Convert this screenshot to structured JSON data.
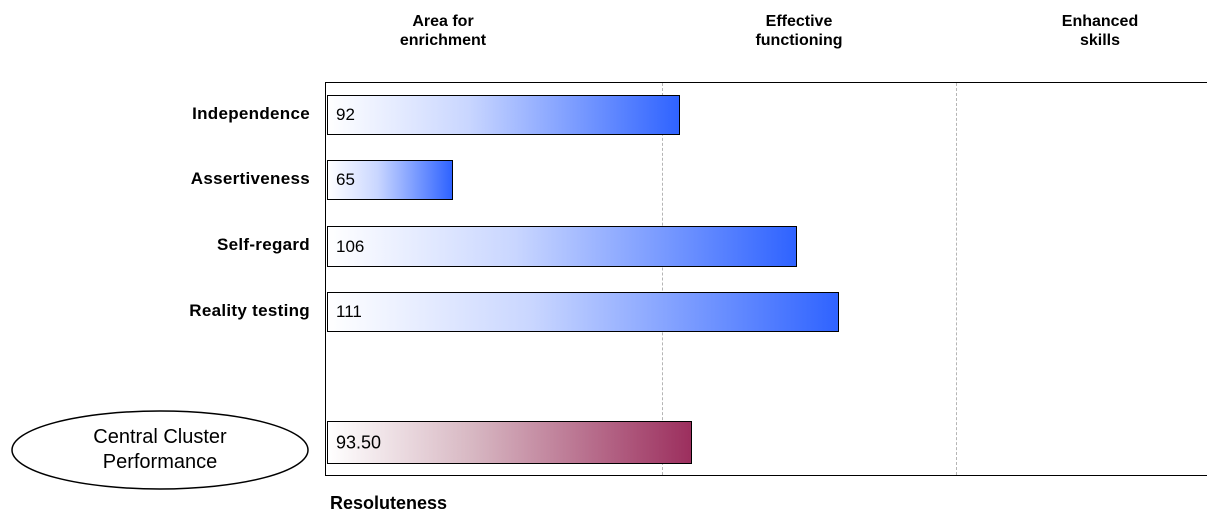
{
  "chart_data": {
    "type": "bar",
    "orientation": "horizontal",
    "xlabel": "Resoluteness",
    "xlim": [
      50,
      155
    ],
    "band_boundaries": [
      90,
      125
    ],
    "bands": [
      {
        "line1": "Area for",
        "line2": "enrichment"
      },
      {
        "line1": "Effective",
        "line2": "functioning"
      },
      {
        "line1": "Enhanced",
        "line2": "skills"
      }
    ],
    "categories": [
      "Independence",
      "Assertiveness",
      "Self-regard",
      "Reality testing"
    ],
    "values": [
      92,
      65,
      106,
      111
    ],
    "value_labels": [
      "92",
      "65",
      "106",
      "111"
    ],
    "summary": {
      "label_line1": "Central Cluster",
      "label_line2": "Performance",
      "value": 93.5,
      "value_label": "93.50"
    },
    "colors": {
      "bars": "#2f63ff",
      "summary": "#9c2f5e"
    },
    "grid": "vertical dashed at band boundaries"
  }
}
